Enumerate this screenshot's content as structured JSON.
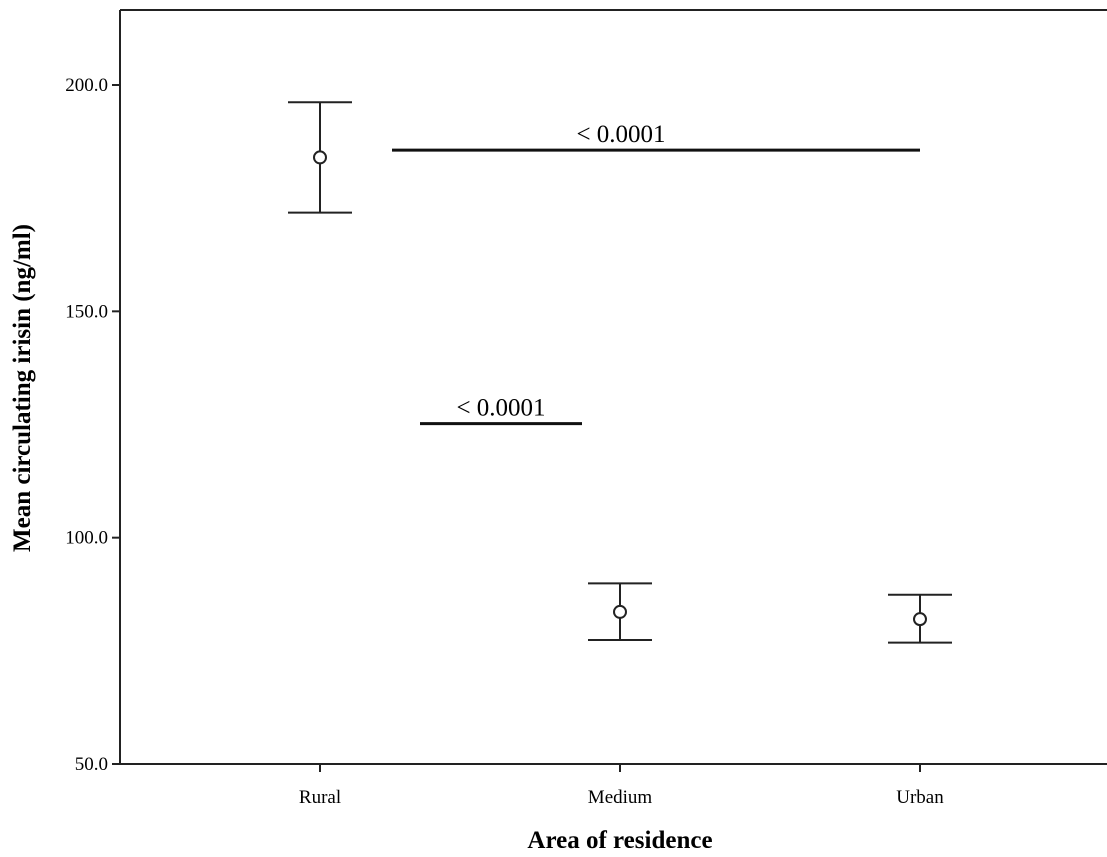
{
  "chart_data": {
    "type": "scatter",
    "xlabel": "Area of residence",
    "ylabel": "Mean circulating irisin (ng/ml)",
    "ylim": [
      50,
      216
    ],
    "yticks": [
      {
        "value": 50,
        "label": "50.0"
      },
      {
        "value": 100,
        "label": "100.0"
      },
      {
        "value": 150,
        "label": "150.0"
      },
      {
        "value": 200,
        "label": "200.0"
      }
    ],
    "categories": [
      "Rural",
      "Medium",
      "Urban"
    ],
    "points": [
      {
        "category": "Rural",
        "mean": 184.0,
        "lower": 171.8,
        "upper": 196.2
      },
      {
        "category": "Medium",
        "mean": 83.6,
        "lower": 77.4,
        "upper": 89.9
      },
      {
        "category": "Urban",
        "mean": 82.0,
        "lower": 76.8,
        "upper": 87.4
      }
    ],
    "annotations": [
      {
        "text": "< 0.0001",
        "from": "Rural",
        "to": "Urban",
        "y": 185.6
      },
      {
        "text": "< 0.0001",
        "from": "Rural",
        "to": "Medium",
        "y": 125.2
      }
    ],
    "grid": false,
    "error_bars": true
  }
}
